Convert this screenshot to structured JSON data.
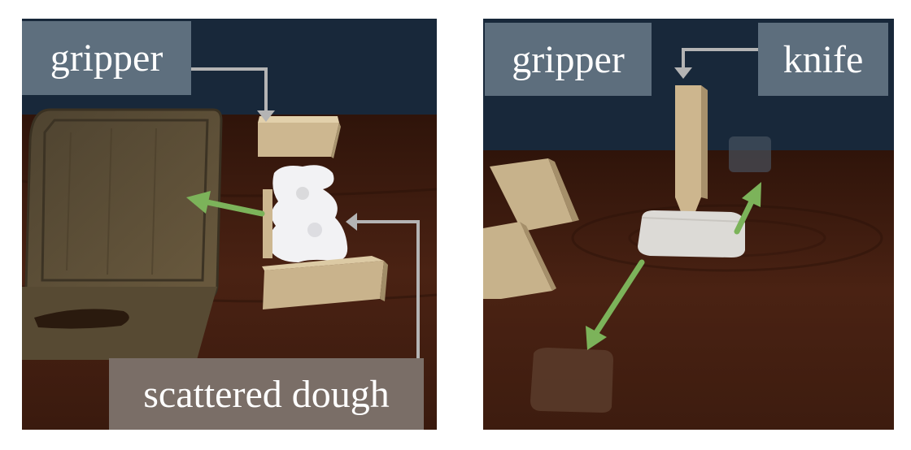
{
  "left_panel": {
    "labels": {
      "gripper": "gripper",
      "dough": "scattered dough"
    },
    "colors": {
      "sky": "#1a2a3c",
      "table": "#3e1c10",
      "board": "#5a4a32",
      "block": "#c9b48e",
      "dough": "#f1f1f3",
      "arrow_green": "#7cb35a",
      "callout": "#b4b4b4"
    }
  },
  "right_panel": {
    "labels": {
      "gripper": "gripper",
      "knife": "knife"
    },
    "colors": {
      "sky": "#1a2a3c",
      "table": "#431e10",
      "block": "#c9b48e",
      "knife": "#cdb68e",
      "dough": "#dcdad6",
      "arrow_green": "#7cb35a",
      "callout": "#b4b4b4"
    }
  }
}
